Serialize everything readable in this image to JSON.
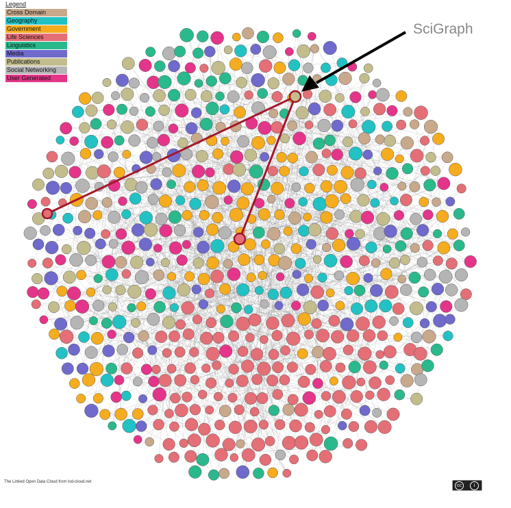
{
  "legend": {
    "title": "Legend",
    "items": [
      {
        "label": "Cross Domain",
        "color": "#c8a98c"
      },
      {
        "label": "Geography",
        "color": "#22c2c4"
      },
      {
        "label": "Government",
        "color": "#f5ac1e"
      },
      {
        "label": "Life Sciences",
        "color": "#e46f76"
      },
      {
        "label": "Linguistics",
        "color": "#2ab98c"
      },
      {
        "label": "Media",
        "color": "#6f6acc"
      },
      {
        "label": "Publications",
        "color": "#c3bd8e"
      },
      {
        "label": "Social Networking",
        "color": "#b5b5b5"
      },
      {
        "label": "User Generated",
        "color": "#e4358a"
      }
    ]
  },
  "highlight_color": "#a5162a",
  "callout_label": "SciGraph",
  "credit": "The Linked Open Data Cloud from lod-cloud.net",
  "license": {
    "icon": "creative-commons-icon",
    "cc": "cc",
    "by": "i"
  }
}
